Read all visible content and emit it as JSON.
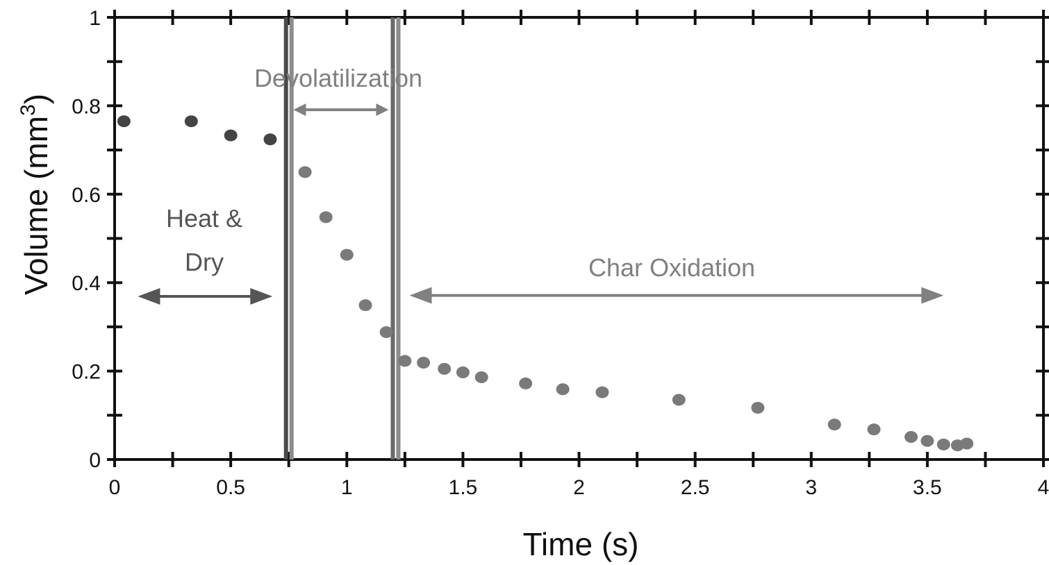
{
  "chart_data": {
    "type": "scatter",
    "title": "",
    "xlabel": "Time (s)",
    "ylabel": "Volume (mm",
    "ylabel_superscript": "3",
    "ylabel_close": ")",
    "xlim": [
      0,
      4
    ],
    "ylim": [
      0,
      1
    ],
    "x_ticks": [
      0,
      0.5,
      1,
      1.5,
      2,
      2.5,
      3,
      3.5,
      4
    ],
    "x_tick_labels": [
      "0",
      "0.5",
      "1",
      "1.5",
      "2",
      "2.5",
      "3",
      "3.5",
      "4"
    ],
    "y_ticks": [
      0,
      0.2,
      0.4,
      0.6,
      0.8,
      1
    ],
    "y_tick_labels": [
      "0",
      "0.2",
      "0.4",
      "0.6",
      "0.8",
      "1"
    ],
    "grid": false,
    "phase_boundaries": [
      0.75,
      1.21
    ],
    "regions": [
      {
        "label_lines": [
          "Heat &",
          "Dry"
        ],
        "x_start": 0.1,
        "x_end": 0.68,
        "color": "#555555"
      },
      {
        "label_lines": [
          "Devolatilization"
        ],
        "x_start": 0.77,
        "x_end": 1.18,
        "color": "#808080"
      },
      {
        "label_lines": [
          "Char Oxidation"
        ],
        "x_start": 1.27,
        "x_end": 3.57,
        "color": "#808080"
      }
    ],
    "series": [
      {
        "color": "#444444",
        "x": [
          0.04,
          0.33,
          0.5,
          0.67
        ],
        "y": [
          0.765,
          0.765,
          0.733,
          0.724
        ]
      },
      {
        "color": "#7a7a7a",
        "x": [
          0.82,
          0.91,
          1.0,
          1.08,
          1.17,
          1.25,
          1.33,
          1.42,
          1.5,
          1.58,
          1.77,
          1.93,
          2.1,
          2.43,
          2.77,
          3.1,
          3.27,
          3.43,
          3.5,
          3.57,
          3.63,
          3.67
        ],
        "y": [
          0.65,
          0.548,
          0.463,
          0.349,
          0.288,
          0.223,
          0.219,
          0.205,
          0.197,
          0.186,
          0.172,
          0.159,
          0.152,
          0.135,
          0.117,
          0.079,
          0.068,
          0.051,
          0.042,
          0.034,
          0.032,
          0.036
        ]
      }
    ]
  }
}
